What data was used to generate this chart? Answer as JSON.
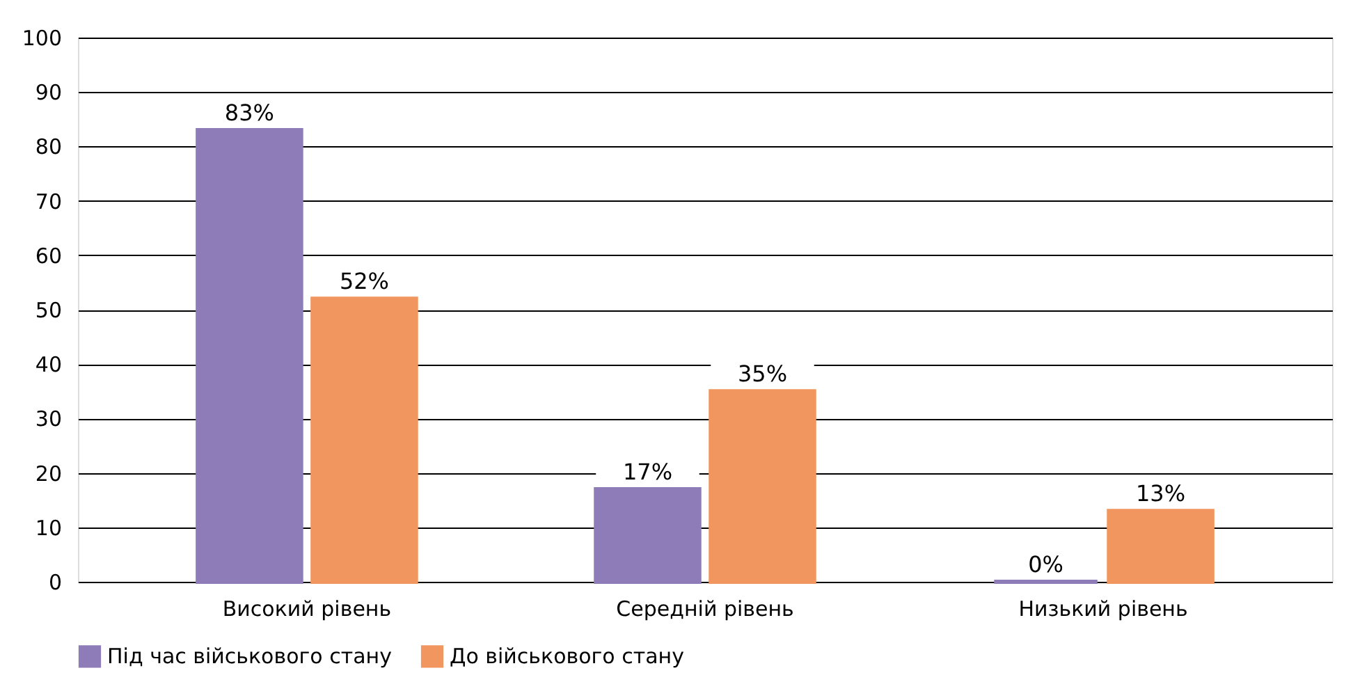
{
  "chart_data": {
    "type": "bar",
    "categories": [
      "Високий рівень",
      "Середній рівень",
      "Низький рівень"
    ],
    "series": [
      {
        "name": "Під час військового стану",
        "color": "#8e7cb8",
        "values": [
          83,
          17,
          0
        ],
        "value_labels": [
          "83%",
          "17%",
          "0%"
        ]
      },
      {
        "name": "До військового стану",
        "color": "#f0965e",
        "values": [
          52,
          35,
          13
        ],
        "value_labels": [
          "52%",
          "35%",
          "13%"
        ]
      }
    ],
    "ylim": [
      0,
      100
    ],
    "yticks": [
      0,
      10,
      20,
      30,
      40,
      50,
      60,
      70,
      80,
      90,
      100
    ],
    "grid": "y",
    "legend": "bottom left"
  }
}
